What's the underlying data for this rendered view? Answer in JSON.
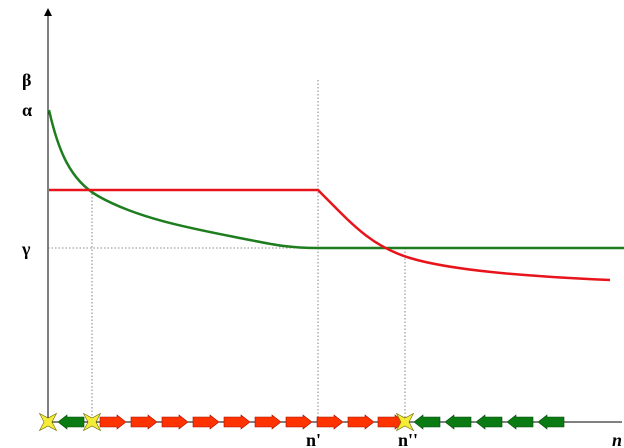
{
  "labels": {
    "beta": "β",
    "alpha": "α",
    "gamma": "γ",
    "n_prime": "n'",
    "n_double_prime": "n''",
    "n_axis": "n"
  },
  "colors": {
    "red_curve": "#e8141b",
    "green_curve": "#1e7d1e",
    "red_arrow": "#ff3300",
    "green_arrow": "#0a7a12",
    "star": "#f5ec3a",
    "guide": "#666666",
    "axis": "#000000"
  },
  "arrow_sequence": [
    "star",
    "green-left",
    "star",
    "red-right",
    "red-right",
    "red-right",
    "red-right",
    "red-right",
    "red-right",
    "red-right",
    "red-right",
    "red-right",
    "red-right",
    "star",
    "green-left",
    "green-left",
    "green-left",
    "green-left",
    "green-left"
  ]
}
